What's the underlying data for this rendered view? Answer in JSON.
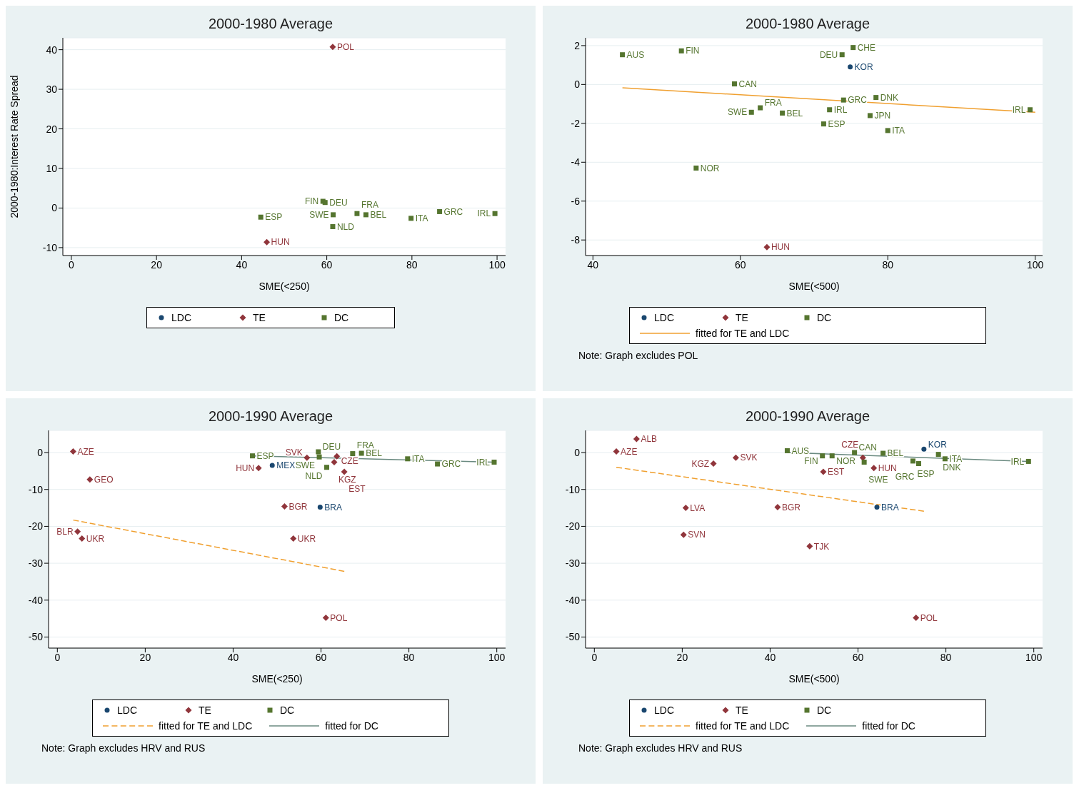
{
  "chart_data": [
    {
      "type": "scatter",
      "title": "2000-1980 Average",
      "xlabel": "SME(<250)",
      "ylabel": "2000-1980:Interest Rate Spread",
      "xlim": [
        -2,
        102
      ],
      "ylim": [
        -12,
        43
      ],
      "xticks": [
        0,
        20,
        40,
        60,
        80,
        100
      ],
      "yticks": [
        -10,
        0,
        10,
        20,
        30,
        40
      ],
      "grid": "y",
      "legend": "bottom",
      "series": [
        {
          "name": "LDC",
          "marker": "circle",
          "color": "#1a476f"
        },
        {
          "name": "TE",
          "type": "scatter",
          "marker": "diamond",
          "color": "#90353b",
          "x": [
            61.4,
            45.9
          ],
          "values": [
            40.7,
            -8.6
          ],
          "value_labels": [
            "POL",
            "HUN"
          ]
        },
        {
          "name": "DC",
          "type": "scatter",
          "marker": "square",
          "color": "#55752f",
          "x": [
            44.5,
            59.1,
            59.6,
            61.5,
            67.1,
            69.2,
            61.4,
            79.8,
            86.5,
            99.5
          ],
          "values": [
            -2.3,
            1.7,
            1.4,
            -1.7,
            -1.4,
            -1.7,
            -4.7,
            -2.6,
            -0.9,
            -1.4
          ],
          "value_labels": [
            "ESP",
            "FIN",
            "DEU",
            "SWE",
            "FRA",
            "BEL",
            "NLD",
            "ITA",
            "GRC",
            "IRL"
          ]
        }
      ]
    },
    {
      "type": "scatter",
      "title": "2000-1980 Average",
      "xlabel": "SME(<500)",
      "xlim": [
        39,
        101
      ],
      "ylim": [
        -8.8,
        2.4
      ],
      "xticks": [
        40,
        60,
        80,
        100
      ],
      "yticks": [
        -8,
        -6,
        -4,
        -2,
        0,
        2
      ],
      "grid": "y",
      "legend": "bottom",
      "annotations": [
        "Note: Graph excludes POL"
      ],
      "series": [
        {
          "name": "LDC",
          "marker": "circle",
          "color": "#1a476f",
          "x": [
            74.9
          ],
          "values": [
            0.9
          ],
          "value_labels": [
            "KOR"
          ]
        },
        {
          "name": "TE",
          "type": "scatter",
          "marker": "diamond",
          "color": "#90353b",
          "x": [
            63.6
          ],
          "values": [
            -8.37
          ],
          "value_labels": [
            "HUN"
          ]
        },
        {
          "name": "DC",
          "type": "scatter",
          "marker": "square",
          "color": "#55752f",
          "x": [
            44.0,
            52.0,
            75.3,
            73.8,
            59.2,
            74.0,
            78.4,
            62.7,
            61.5,
            65.7,
            72.1,
            77.6,
            71.3,
            80.0,
            54.0,
            99.3
          ],
          "values": [
            1.53,
            1.73,
            1.9,
            1.53,
            0.03,
            -0.8,
            -0.67,
            -1.2,
            -1.43,
            -1.47,
            -1.3,
            -1.6,
            -2.03,
            -2.37,
            -4.3,
            -1.3
          ],
          "value_labels": [
            "AUS",
            "FIN",
            "CHE",
            "DEU",
            "CAN",
            "GRC",
            "DNK",
            "FRA",
            "SWE",
            "BEL",
            "IRL",
            "JPN",
            "ESP",
            "ITA",
            "NOR",
            "IRL"
          ]
        },
        {
          "name": "fitted for TE and LDC",
          "type": "line",
          "line_style": "solid",
          "color": "#f0a030",
          "x": [
            44.0,
            100
          ],
          "values": [
            -0.17,
            -1.43
          ]
        }
      ]
    },
    {
      "type": "scatter",
      "title": "2000-1990 Average",
      "xlabel": "SME(<250)",
      "xlim": [
        -2,
        102
      ],
      "ylim": [
        -53,
        6
      ],
      "xticks": [
        0,
        20,
        40,
        60,
        80,
        100
      ],
      "yticks": [
        -50,
        -40,
        -30,
        -20,
        -10,
        0
      ],
      "grid": "y",
      "legend": "bottom",
      "annotations": [
        "Note: Graph excludes HRV and RUS"
      ],
      "series": [
        {
          "name": "LDC",
          "marker": "circle",
          "color": "#1a476f",
          "x": [
            59.8,
            48.9
          ],
          "values": [
            -14.8,
            -3.5
          ],
          "value_labels": [
            "BRA",
            "MEX"
          ]
        },
        {
          "name": "TE",
          "type": "scatter",
          "marker": "diamond",
          "color": "#90353b",
          "x": [
            3.6,
            7.4,
            4.6,
            5.6,
            51.7,
            53.7,
            61.1,
            45.8,
            56.8,
            63.6,
            63.0,
            65.3
          ],
          "values": [
            0.3,
            -7.3,
            -21.4,
            -23.3,
            -14.6,
            -23.3,
            -44.8,
            -4.2,
            -1.4,
            -1.0,
            -2.6,
            -5.2
          ],
          "value_labels": [
            "AZE",
            "GEO",
            "BLR",
            "UKR",
            "BGR",
            "UKR",
            "POL",
            "HUN",
            "SVK",
            "CZE",
            "KGZ",
            "EST"
          ]
        },
        {
          "name": "DC",
          "type": "scatter",
          "marker": "square",
          "color": "#55752f",
          "x": [
            44.4,
            59.4,
            59.6,
            61.3,
            67.2,
            69.2,
            79.7,
            86.5,
            99.4
          ],
          "values": [
            -0.9,
            0.2,
            -1.2,
            -4.0,
            -0.3,
            -0.2,
            -1.7,
            -3.1,
            -2.6
          ],
          "value_labels": [
            "ESP",
            "DEU",
            "SWE",
            "NLD",
            "FRA",
            "BEL",
            "ITA",
            "GRC",
            "IRL"
          ]
        },
        {
          "name": "fitted for TE and LDC",
          "type": "line",
          "line_style": "dashed",
          "color": "#f0a030",
          "x": [
            3.6,
            65.3
          ],
          "values": [
            -18.3,
            -32.2
          ]
        },
        {
          "name": "fitted for DC",
          "type": "line",
          "line_style": "solid",
          "color": "#6a8a80",
          "x": [
            44.4,
            99.4
          ],
          "values": [
            -0.9,
            -2.6
          ]
        }
      ]
    },
    {
      "type": "scatter",
      "title": "2000-1990 Average",
      "xlabel": "SME(<500)",
      "xlim": [
        -2,
        102
      ],
      "ylim": [
        -53,
        6
      ],
      "xticks": [
        0,
        20,
        40,
        60,
        80,
        100
      ],
      "yticks": [
        -50,
        -40,
        -30,
        -20,
        -10,
        0
      ],
      "grid": "y",
      "legend": "bottom",
      "annotations": [
        "Note: Graph excludes HRV and RUS"
      ],
      "series": [
        {
          "name": "LDC",
          "marker": "circle",
          "color": "#1a476f",
          "x": [
            64.3,
            75.0
          ],
          "values": [
            -14.8,
            0.9
          ],
          "value_labels": [
            "BRA",
            "KOR"
          ]
        },
        {
          "name": "TE",
          "type": "scatter",
          "marker": "diamond",
          "color": "#90353b",
          "x": [
            9.6,
            5.0,
            32.2,
            27.1,
            20.8,
            20.3,
            41.7,
            49.0,
            52.1,
            61.1,
            63.6,
            73.2
          ],
          "values": [
            3.7,
            0.3,
            -1.4,
            -3.0,
            -15.0,
            -22.3,
            -14.8,
            -25.4,
            -5.2,
            -1.4,
            -4.2,
            -44.8
          ],
          "value_labels": [
            "ALB",
            "AZE",
            "SVK",
            "KGZ",
            "LVA",
            "SVN",
            "BGR",
            "TJK",
            "EST",
            "CZE",
            "HUN",
            "POL"
          ]
        },
        {
          "name": "DC",
          "type": "scatter",
          "marker": "square",
          "color": "#55752f",
          "x": [
            43.9,
            51.9,
            54.1,
            59.2,
            61.4,
            65.7,
            72.5,
            73.8,
            78.3,
            79.8,
            98.8
          ],
          "values": [
            0.5,
            -0.9,
            -0.9,
            0.0,
            -2.6,
            -0.2,
            -2.3,
            -3.0,
            -0.5,
            -1.7,
            -2.4
          ],
          "value_labels": [
            "AUS",
            "FIN",
            "NOR",
            "CAN",
            "SWE",
            "BEL",
            "ESP",
            "GRC",
            "DNK",
            "ITA",
            "IRL"
          ]
        },
        {
          "name": "fitted for TE and LDC",
          "type": "line",
          "line_style": "dashed",
          "color": "#f0a030",
          "x": [
            5.0,
            75.0
          ],
          "values": [
            -4.0,
            -15.9
          ]
        },
        {
          "name": "fitted for DC",
          "type": "line",
          "line_style": "solid",
          "color": "#6a8a80",
          "x": [
            43.9,
            98.8
          ],
          "values": [
            0.0,
            -2.4
          ]
        }
      ]
    }
  ]
}
